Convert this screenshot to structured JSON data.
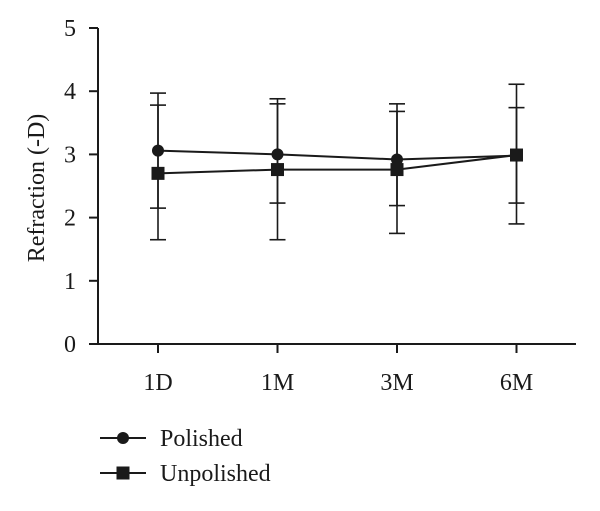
{
  "chart_data": {
    "type": "line",
    "title": "",
    "xlabel": "",
    "ylabel": "Refraction (-D)",
    "categories": [
      "1D",
      "1M",
      "3M",
      "6M"
    ],
    "ylim": [
      0,
      5
    ],
    "yticks": [
      0,
      1,
      2,
      3,
      4,
      5
    ],
    "grid": false,
    "legend_position": "bottom-left",
    "series": [
      {
        "name": "Polished",
        "marker": "circle",
        "values": [
          3.06,
          3.0,
          2.92,
          2.98
        ],
        "error_low": [
          1.65,
          1.65,
          1.75,
          1.9
        ],
        "error_high": [
          3.97,
          3.88,
          3.8,
          4.11
        ]
      },
      {
        "name": "Unpolished",
        "marker": "square",
        "values": [
          2.7,
          2.76,
          2.76,
          2.99
        ],
        "error_low": [
          2.15,
          2.23,
          2.19,
          2.23
        ],
        "error_high": [
          3.78,
          3.8,
          3.68,
          3.74
        ]
      }
    ],
    "colors": {
      "line": "#1a1a1a",
      "marker": "#1a1a1a"
    }
  }
}
